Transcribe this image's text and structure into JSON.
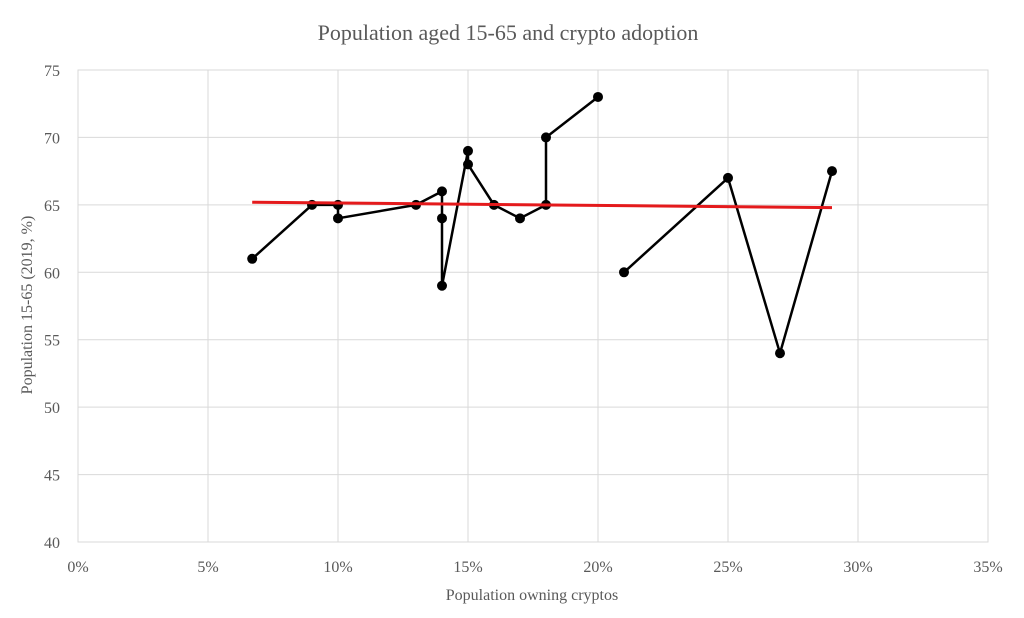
{
  "chart_data": {
    "type": "scatter",
    "title": "Population aged 15-65 and crypto adoption",
    "xlabel": "Population owning cryptos",
    "ylabel": "Population 15-65  (2019, %)",
    "xlim": [
      0,
      0.35
    ],
    "ylim": [
      40,
      75
    ],
    "x_ticks": [
      0,
      0.05,
      0.1,
      0.15,
      0.2,
      0.25,
      0.3,
      0.35
    ],
    "x_tick_labels": [
      "0%",
      "5%",
      "10%",
      "15%",
      "20%",
      "25%",
      "30%",
      "35%"
    ],
    "y_ticks": [
      40,
      45,
      50,
      55,
      60,
      65,
      70,
      75
    ],
    "y_tick_labels": [
      "40",
      "45",
      "50",
      "55",
      "60",
      "65",
      "70",
      "75"
    ],
    "grid": true,
    "legend": "none",
    "series": [
      {
        "style": "line-markers",
        "color": "#000000",
        "points": [
          [
            0.067,
            61
          ],
          [
            0.09,
            65
          ],
          [
            0.1,
            65
          ],
          [
            0.1,
            64
          ],
          [
            0.13,
            65
          ],
          [
            0.14,
            66
          ],
          [
            0.14,
            64
          ],
          [
            0.14,
            59
          ],
          [
            0.15,
            69
          ],
          [
            0.15,
            68
          ],
          [
            0.16,
            65
          ],
          [
            0.17,
            64
          ],
          [
            0.18,
            65
          ],
          [
            0.18,
            70
          ],
          [
            0.2,
            73
          ]
        ]
      },
      {
        "style": "line-markers",
        "color": "#000000",
        "points": [
          [
            0.21,
            60
          ],
          [
            0.25,
            67
          ],
          [
            0.27,
            54
          ],
          [
            0.29,
            67.5
          ]
        ]
      },
      {
        "style": "trendline",
        "color": "#e41a1c",
        "points": [
          [
            0.067,
            65.2
          ],
          [
            0.29,
            64.8
          ]
        ]
      }
    ]
  }
}
